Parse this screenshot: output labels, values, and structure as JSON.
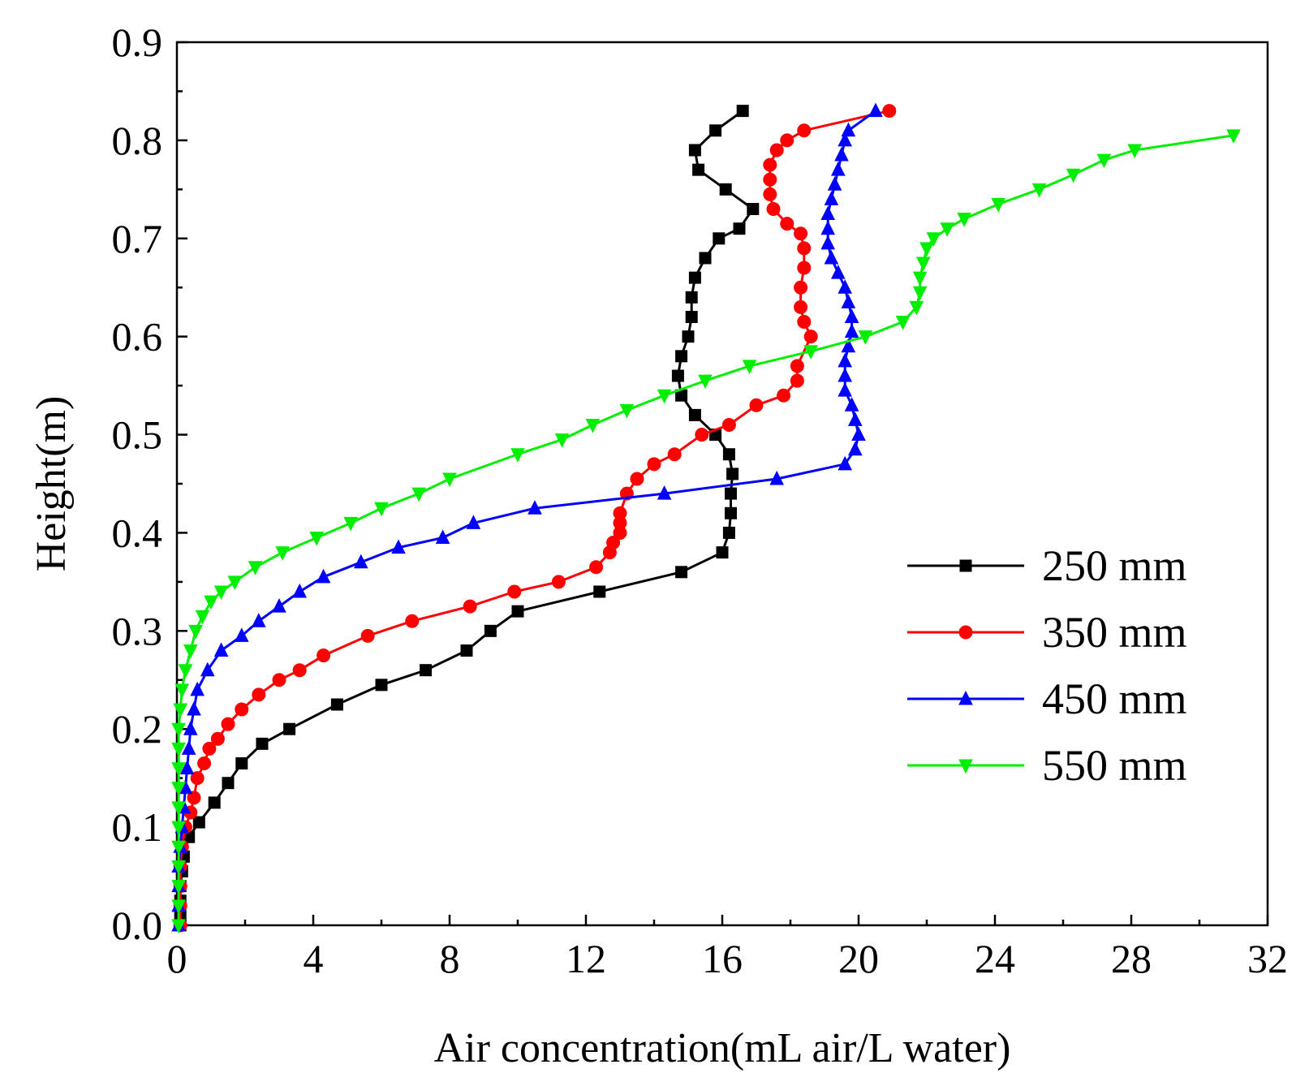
{
  "chart_data": {
    "type": "line",
    "title": "",
    "xlabel": "Air concentration(mL air/L water)",
    "ylabel": "Height(m)",
    "xlim": [
      0,
      32
    ],
    "ylim": [
      0,
      0.9
    ],
    "xticks": [
      0,
      4,
      8,
      12,
      16,
      20,
      24,
      28,
      32
    ],
    "xtick_labels": [
      "0",
      "4",
      "8",
      "12",
      "16",
      "20",
      "24",
      "28",
      "32"
    ],
    "yticks": [
      0.0,
      0.1,
      0.2,
      0.3,
      0.4,
      0.5,
      0.6,
      0.7,
      0.8,
      0.9
    ],
    "ytick_labels": [
      "0.0",
      "0.1",
      "0.2",
      "0.3",
      "0.4",
      "0.5",
      "0.6",
      "0.7",
      "0.8",
      "0.9"
    ],
    "grid": false,
    "legend_position": "right-middle",
    "series": [
      {
        "name": "250 mm",
        "color": "#000000",
        "marker": "square",
        "points": [
          [
            0.1,
            0.0
          ],
          [
            0.1,
            0.01
          ],
          [
            0.1,
            0.025
          ],
          [
            0.1,
            0.04
          ],
          [
            0.15,
            0.055
          ],
          [
            0.2,
            0.07
          ],
          [
            0.35,
            0.09
          ],
          [
            0.65,
            0.105
          ],
          [
            1.1,
            0.125
          ],
          [
            1.5,
            0.145
          ],
          [
            1.9,
            0.165
          ],
          [
            2.5,
            0.185
          ],
          [
            3.3,
            0.2
          ],
          [
            4.7,
            0.225
          ],
          [
            6.0,
            0.245
          ],
          [
            7.3,
            0.26
          ],
          [
            8.5,
            0.28
          ],
          [
            9.2,
            0.3
          ],
          [
            10.0,
            0.32
          ],
          [
            12.4,
            0.34
          ],
          [
            14.8,
            0.36
          ],
          [
            16.0,
            0.38
          ],
          [
            16.2,
            0.4
          ],
          [
            16.25,
            0.42
          ],
          [
            16.25,
            0.44
          ],
          [
            16.3,
            0.46
          ],
          [
            16.2,
            0.48
          ],
          [
            15.8,
            0.5
          ],
          [
            15.2,
            0.52
          ],
          [
            14.8,
            0.54
          ],
          [
            14.7,
            0.56
          ],
          [
            14.8,
            0.58
          ],
          [
            15.0,
            0.6
          ],
          [
            15.1,
            0.62
          ],
          [
            15.1,
            0.64
          ],
          [
            15.2,
            0.66
          ],
          [
            15.5,
            0.68
          ],
          [
            15.9,
            0.7
          ],
          [
            16.5,
            0.71
          ],
          [
            16.9,
            0.73
          ],
          [
            16.1,
            0.75
          ],
          [
            15.3,
            0.77
          ],
          [
            15.2,
            0.79
          ],
          [
            15.8,
            0.81
          ],
          [
            16.6,
            0.83
          ]
        ]
      },
      {
        "name": "350 mm",
        "color": "#ff0000",
        "marker": "circle",
        "points": [
          [
            0.1,
            0.0
          ],
          [
            0.1,
            0.02
          ],
          [
            0.1,
            0.04
          ],
          [
            0.1,
            0.06
          ],
          [
            0.15,
            0.08
          ],
          [
            0.25,
            0.1
          ],
          [
            0.4,
            0.115
          ],
          [
            0.5,
            0.13
          ],
          [
            0.6,
            0.15
          ],
          [
            0.8,
            0.165
          ],
          [
            0.95,
            0.18
          ],
          [
            1.2,
            0.19
          ],
          [
            1.5,
            0.205
          ],
          [
            1.9,
            0.22
          ],
          [
            2.4,
            0.235
          ],
          [
            3.0,
            0.25
          ],
          [
            3.6,
            0.26
          ],
          [
            4.3,
            0.275
          ],
          [
            5.6,
            0.295
          ],
          [
            6.9,
            0.31
          ],
          [
            8.6,
            0.325
          ],
          [
            9.9,
            0.34
          ],
          [
            11.2,
            0.35
          ],
          [
            12.3,
            0.365
          ],
          [
            12.7,
            0.38
          ],
          [
            12.8,
            0.39
          ],
          [
            13.0,
            0.4
          ],
          [
            13.0,
            0.41
          ],
          [
            13.0,
            0.42
          ],
          [
            13.2,
            0.44
          ],
          [
            13.5,
            0.455
          ],
          [
            14.0,
            0.47
          ],
          [
            14.6,
            0.48
          ],
          [
            15.4,
            0.5
          ],
          [
            16.2,
            0.51
          ],
          [
            17.0,
            0.53
          ],
          [
            17.8,
            0.54
          ],
          [
            18.2,
            0.555
          ],
          [
            18.2,
            0.57
          ],
          [
            18.6,
            0.6
          ],
          [
            18.4,
            0.615
          ],
          [
            18.3,
            0.63
          ],
          [
            18.3,
            0.65
          ],
          [
            18.4,
            0.67
          ],
          [
            18.4,
            0.69
          ],
          [
            18.3,
            0.705
          ],
          [
            17.9,
            0.715
          ],
          [
            17.5,
            0.73
          ],
          [
            17.4,
            0.745
          ],
          [
            17.4,
            0.76
          ],
          [
            17.4,
            0.775
          ],
          [
            17.6,
            0.79
          ],
          [
            17.9,
            0.8
          ],
          [
            18.4,
            0.81
          ],
          [
            20.9,
            0.83
          ]
        ]
      },
      {
        "name": "450 mm",
        "color": "#0000ff",
        "marker": "triangle-up",
        "points": [
          [
            0.05,
            0.0
          ],
          [
            0.05,
            0.02
          ],
          [
            0.05,
            0.04
          ],
          [
            0.05,
            0.06
          ],
          [
            0.1,
            0.08
          ],
          [
            0.15,
            0.1
          ],
          [
            0.2,
            0.12
          ],
          [
            0.25,
            0.14
          ],
          [
            0.3,
            0.16
          ],
          [
            0.35,
            0.18
          ],
          [
            0.4,
            0.2
          ],
          [
            0.5,
            0.22
          ],
          [
            0.6,
            0.24
          ],
          [
            0.9,
            0.26
          ],
          [
            1.3,
            0.28
          ],
          [
            1.9,
            0.295
          ],
          [
            2.4,
            0.31
          ],
          [
            3.0,
            0.325
          ],
          [
            3.6,
            0.34
          ],
          [
            4.3,
            0.355
          ],
          [
            5.4,
            0.37
          ],
          [
            6.5,
            0.385
          ],
          [
            7.8,
            0.395
          ],
          [
            8.7,
            0.41
          ],
          [
            10.5,
            0.425
          ],
          [
            14.3,
            0.44
          ],
          [
            17.6,
            0.455
          ],
          [
            19.6,
            0.47
          ],
          [
            19.9,
            0.485
          ],
          [
            20.0,
            0.5
          ],
          [
            19.9,
            0.515
          ],
          [
            19.8,
            0.53
          ],
          [
            19.6,
            0.545
          ],
          [
            19.6,
            0.56
          ],
          [
            19.6,
            0.575
          ],
          [
            19.7,
            0.59
          ],
          [
            19.8,
            0.605
          ],
          [
            19.8,
            0.62
          ],
          [
            19.7,
            0.635
          ],
          [
            19.6,
            0.65
          ],
          [
            19.4,
            0.665
          ],
          [
            19.2,
            0.68
          ],
          [
            19.1,
            0.695
          ],
          [
            19.1,
            0.71
          ],
          [
            19.1,
            0.725
          ],
          [
            19.2,
            0.74
          ],
          [
            19.3,
            0.755
          ],
          [
            19.4,
            0.77
          ],
          [
            19.5,
            0.785
          ],
          [
            19.6,
            0.8
          ],
          [
            19.7,
            0.81
          ],
          [
            20.5,
            0.83
          ]
        ]
      },
      {
        "name": "550 mm",
        "color": "#00ee00",
        "marker": "triangle-down",
        "points": [
          [
            0.05,
            0.0
          ],
          [
            0.05,
            0.02
          ],
          [
            0.05,
            0.04
          ],
          [
            0.05,
            0.06
          ],
          [
            0.05,
            0.08
          ],
          [
            0.05,
            0.1
          ],
          [
            0.05,
            0.12
          ],
          [
            0.05,
            0.14
          ],
          [
            0.05,
            0.16
          ],
          [
            0.05,
            0.18
          ],
          [
            0.05,
            0.2
          ],
          [
            0.1,
            0.22
          ],
          [
            0.15,
            0.24
          ],
          [
            0.25,
            0.26
          ],
          [
            0.4,
            0.28
          ],
          [
            0.55,
            0.3
          ],
          [
            0.75,
            0.315
          ],
          [
            1.0,
            0.33
          ],
          [
            1.3,
            0.34
          ],
          [
            1.7,
            0.35
          ],
          [
            2.3,
            0.365
          ],
          [
            3.1,
            0.38
          ],
          [
            4.1,
            0.395
          ],
          [
            5.1,
            0.41
          ],
          [
            6.0,
            0.425
          ],
          [
            7.1,
            0.44
          ],
          [
            8.0,
            0.455
          ],
          [
            10.0,
            0.48
          ],
          [
            11.3,
            0.495
          ],
          [
            12.2,
            0.51
          ],
          [
            13.2,
            0.525
          ],
          [
            14.3,
            0.54
          ],
          [
            15.5,
            0.555
          ],
          [
            16.8,
            0.57
          ],
          [
            18.6,
            0.585
          ],
          [
            20.2,
            0.6
          ],
          [
            21.3,
            0.615
          ],
          [
            21.7,
            0.63
          ],
          [
            21.8,
            0.645
          ],
          [
            21.8,
            0.66
          ],
          [
            21.9,
            0.675
          ],
          [
            22.0,
            0.69
          ],
          [
            22.2,
            0.7
          ],
          [
            22.6,
            0.71
          ],
          [
            23.1,
            0.72
          ],
          [
            24.1,
            0.735
          ],
          [
            25.3,
            0.75
          ],
          [
            26.3,
            0.765
          ],
          [
            27.2,
            0.78
          ],
          [
            28.1,
            0.79
          ],
          [
            31.0,
            0.805
          ]
        ]
      }
    ]
  }
}
